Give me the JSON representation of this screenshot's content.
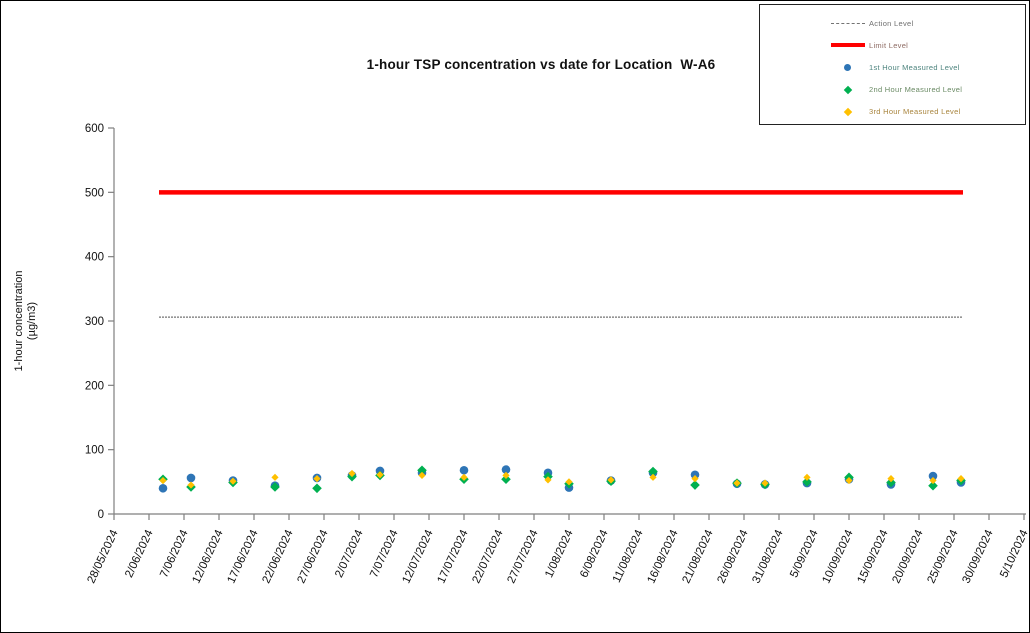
{
  "chart_data": {
    "type": "scatter",
    "title": "1-hour TSP concentration vs date for Location  W-A6",
    "ylabel": "1-hour concentration (µg/m3)",
    "ylabel_lines": [
      "1-hour concentration",
      "(µg/m3)"
    ],
    "ylim": [
      0,
      600
    ],
    "y_ticks": [
      0,
      100,
      200,
      300,
      400,
      500,
      600
    ],
    "x_axis_start": "28/05/2024",
    "x_axis_end": "5/10/2024",
    "x_tick_interval_days": 5,
    "x_ticks": [
      "28/05/2024",
      "2/06/2024",
      "7/06/2024",
      "12/06/2024",
      "17/06/2024",
      "22/06/2024",
      "27/06/2024",
      "2/07/2024",
      "7/07/2024",
      "12/07/2024",
      "17/07/2024",
      "22/07/2024",
      "27/07/2024",
      "1/08/2024",
      "6/08/2024",
      "11/08/2024",
      "16/08/2024",
      "21/08/2024",
      "26/08/2024",
      "31/08/2024",
      "5/09/2024",
      "10/09/2024",
      "15/09/2024",
      "20/09/2024",
      "25/09/2024",
      "30/09/2024",
      "5/10/2024"
    ],
    "grid": false,
    "legend_position": "top-right",
    "reference_lines": [
      {
        "name": "Action Level",
        "value": 306,
        "color": "#737373",
        "stroke_width": 1.2,
        "dashed": true
      },
      {
        "name": "Limit Level",
        "value": 500,
        "color": "#ff0000",
        "stroke_width": 4.5,
        "dashed": false
      }
    ],
    "dates": [
      "4/06/2024",
      "8/06/2024",
      "14/06/2024",
      "20/06/2024",
      "26/06/2024",
      "1/07/2024",
      "5/07/2024",
      "11/07/2024",
      "17/07/2024",
      "23/07/2024",
      "29/07/2024",
      "1/08/2024",
      "7/08/2024",
      "13/08/2024",
      "19/08/2024",
      "25/08/2024",
      "29/08/2024",
      "4/09/2024",
      "10/09/2024",
      "16/09/2024",
      "22/09/2024",
      "26/09/2024"
    ],
    "series": [
      {
        "name": "1st Hour Measured Level",
        "marker": "circle",
        "color": "#2e75b6",
        "values": [
          40,
          56,
          52,
          44,
          56,
          60,
          67,
          64,
          68,
          69,
          64,
          41,
          52,
          64,
          61,
          47,
          46,
          48,
          54,
          46,
          59,
          49
        ]
      },
      {
        "name": "2nd Hour Measured Level",
        "marker": "diamond",
        "color": "#00b050",
        "values": [
          54,
          42,
          49,
          42,
          40,
          58,
          60,
          68,
          54,
          54,
          58,
          47,
          51,
          66,
          45,
          48,
          46,
          50,
          57,
          49,
          44,
          52
        ]
      },
      {
        "name": "3rd Hour Measured Level",
        "marker": "diamond",
        "color": "#ffc000",
        "values": [
          52,
          45,
          51,
          57,
          55,
          63,
          61,
          60,
          57,
          60,
          53,
          50,
          53,
          57,
          55,
          48,
          48,
          57,
          52,
          55,
          52,
          55
        ]
      }
    ]
  },
  "legend": {
    "items": [
      {
        "label": "Action Level",
        "marker": "line",
        "color": "#737373",
        "text_color": "#6f6f6f"
      },
      {
        "label": "Limit Level",
        "marker": "line-thick",
        "color": "#ff0000",
        "text_color": "#8d6a62"
      },
      {
        "label": "1st Hour Measured Level",
        "marker": "circle",
        "color": "#2e75b6",
        "text_color": "#4c837d"
      },
      {
        "label": "2nd Hour Measured Level",
        "marker": "diamond",
        "color": "#00b050",
        "text_color": "#6a8a64"
      },
      {
        "label": "3rd Hour Measured Level",
        "marker": "diamond",
        "color": "#ffc000",
        "text_color": "#a9853e"
      }
    ]
  }
}
